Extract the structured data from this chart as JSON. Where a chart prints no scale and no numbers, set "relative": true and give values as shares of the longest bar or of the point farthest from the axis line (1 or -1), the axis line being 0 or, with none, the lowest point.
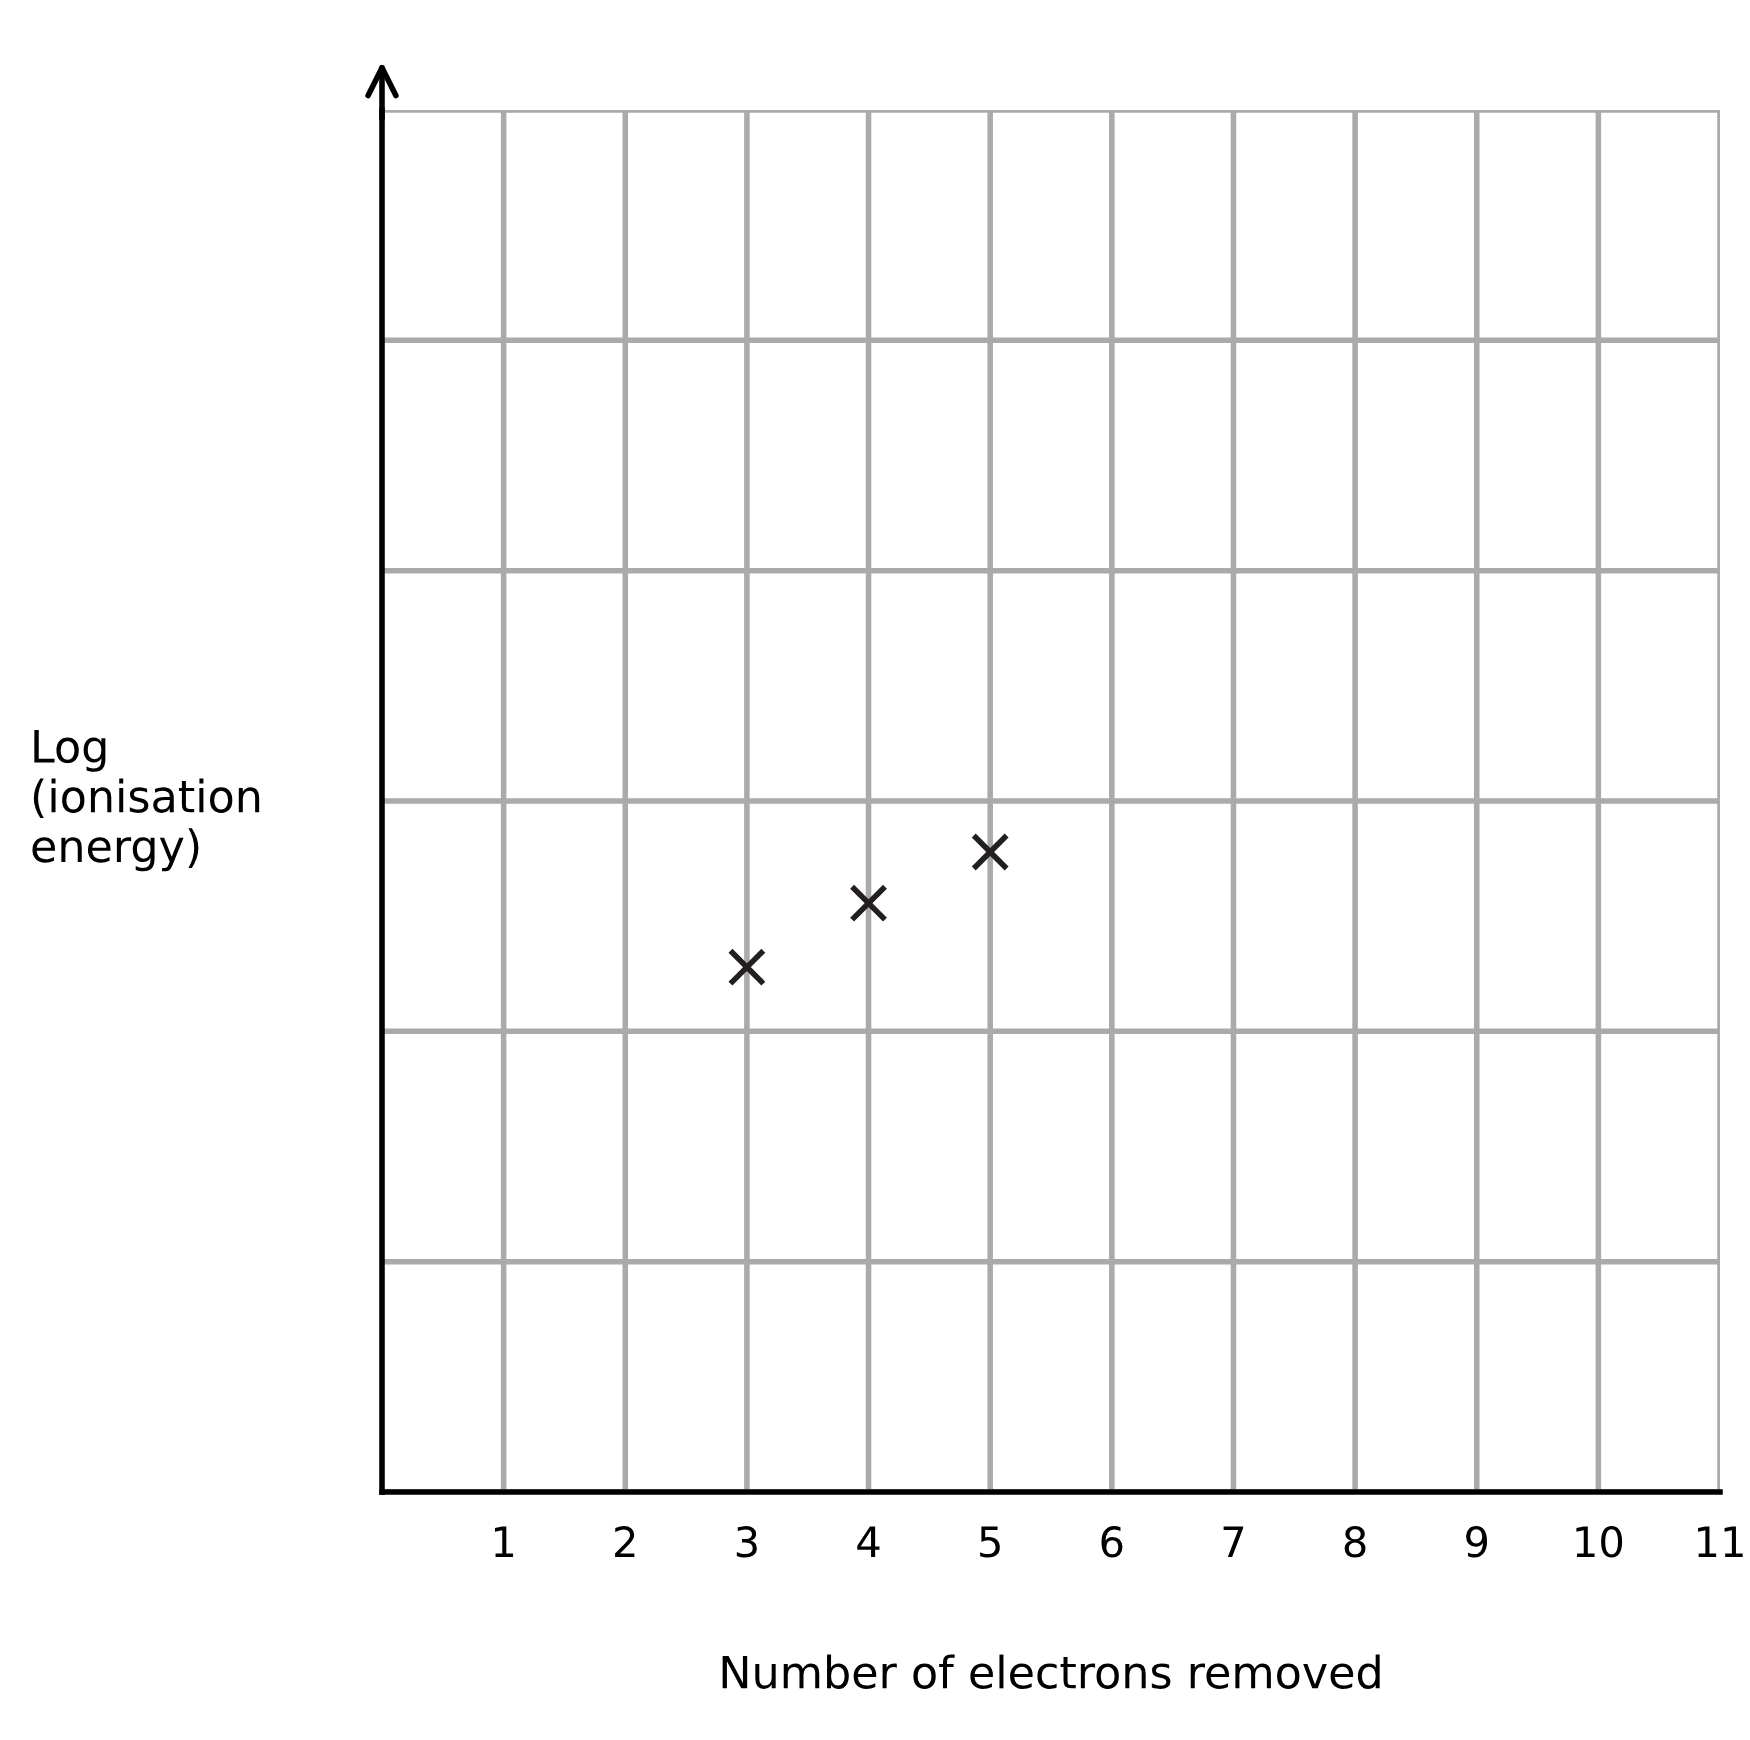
{
  "chart_data": {
    "type": "scatter",
    "relative": true,
    "ylabel": "Log\n(ionisation\nenergy)",
    "xlabel": "Number of electrons removed",
    "x": [
      3,
      4,
      5
    ],
    "series": [
      {
        "color": "#231f20",
        "values": [
          0.82,
          0.92,
          1
        ]
      }
    ],
    "xlim": [
      0,
      11
    ],
    "xticks": [
      1,
      2,
      3,
      4,
      5,
      6,
      7,
      8,
      9,
      10,
      11
    ],
    "grid": true,
    "marker": "cross",
    "tick_labels": "x"
  }
}
